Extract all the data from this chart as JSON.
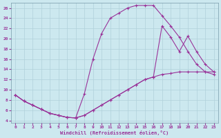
{
  "xlabel": "Windchill (Refroidissement éolien,°C)",
  "bg_color": "#cce8ef",
  "grid_color": "#b0d0da",
  "line_color": "#993399",
  "xlim": [
    -0.5,
    23.5
  ],
  "ylim": [
    3.5,
    27
  ],
  "xticks": [
    0,
    1,
    2,
    3,
    4,
    5,
    6,
    7,
    8,
    9,
    10,
    11,
    12,
    13,
    14,
    15,
    16,
    17,
    18,
    19,
    20,
    21,
    22,
    23
  ],
  "yticks": [
    4,
    6,
    8,
    10,
    12,
    14,
    16,
    18,
    20,
    22,
    24,
    26
  ],
  "line1_x": [
    0,
    1,
    2,
    3,
    4,
    5,
    6,
    7,
    8,
    9,
    10,
    11,
    12,
    13,
    14,
    15,
    16,
    17,
    18,
    19,
    20,
    21,
    22,
    23
  ],
  "line1_y": [
    9.0,
    7.8,
    7.0,
    6.2,
    5.4,
    5.0,
    4.6,
    4.5,
    9.2,
    16.0,
    21.0,
    24.0,
    25.0,
    26.0,
    26.5,
    26.5,
    26.5,
    24.5,
    22.5,
    20.3,
    17.5,
    15.0,
    13.5,
    13.0
  ],
  "line2_x": [
    0,
    1,
    2,
    3,
    4,
    5,
    6,
    7,
    8,
    9,
    10,
    11,
    12,
    13,
    14,
    15,
    16,
    17,
    18,
    19,
    20,
    21,
    22,
    23
  ],
  "line2_y": [
    9.0,
    7.8,
    7.0,
    6.2,
    5.4,
    5.0,
    4.6,
    4.5,
    5.0,
    6.0,
    7.0,
    8.0,
    9.0,
    10.0,
    11.0,
    12.0,
    12.5,
    13.0,
    13.2,
    13.5,
    13.5,
    13.5,
    13.5,
    13.5
  ],
  "line3_x": [
    0,
    1,
    2,
    3,
    4,
    5,
    6,
    7,
    8,
    9,
    10,
    11,
    12,
    13,
    14,
    15,
    16,
    17,
    18,
    19,
    20,
    21,
    22,
    23
  ],
  "line3_y": [
    9.0,
    7.8,
    7.0,
    6.2,
    5.4,
    5.0,
    4.6,
    4.5,
    5.0,
    6.0,
    7.0,
    8.0,
    9.0,
    10.0,
    11.0,
    12.0,
    12.5,
    22.5,
    20.3,
    17.5,
    20.5,
    17.5,
    15.0,
    13.5
  ]
}
